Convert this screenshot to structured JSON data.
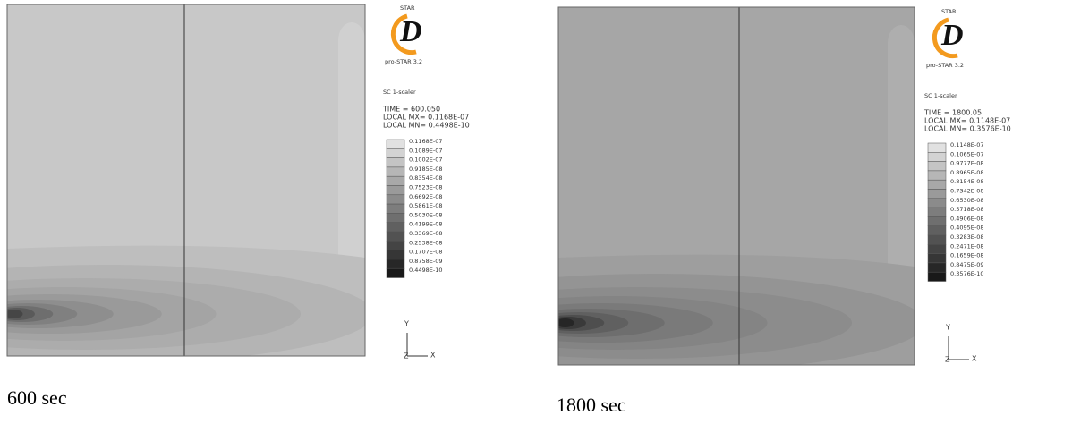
{
  "panels": [
    {
      "logo_top": "STAR",
      "logo_letter": "D",
      "logo_sub": "pro-STAR 3.2",
      "scalar": "SC 1-scaler",
      "time": "TIME =  600.050",
      "local_mx": "LOCAL MX= 0.1168E-07",
      "local_mn": "LOCAL MN= 0.4498E-10",
      "legend": [
        "0.1168E-07",
        "0.1089E-07",
        "0.1002E-07",
        "0.9185E-08",
        "0.8354E-08",
        "0.7523E-08",
        "0.6692E-08",
        "0.5861E-08",
        "0.5030E-08",
        "0.4199E-08",
        "0.3369E-08",
        "0.2538E-08",
        "0.1707E-08",
        "0.8758E-09",
        "0.4498E-10"
      ],
      "axis_y": "Y",
      "axis_z": "Z",
      "axis_x": "X",
      "caption": "600 sec"
    },
    {
      "logo_top": "STAR",
      "logo_letter": "D",
      "logo_sub": "pro-STAR 3.2",
      "scalar": "SC 1-scaler",
      "time": "TIME =  1800.05",
      "local_mx": "LOCAL MX= 0.1148E-07",
      "local_mn": "LOCAL MN= 0.3576E-10",
      "legend": [
        "0.1148E-07",
        "0.1065E-07",
        "0.9777E-08",
        "0.8965E-08",
        "0.8154E-08",
        "0.7342E-08",
        "0.6530E-08",
        "0.5718E-08",
        "0.4906E-08",
        "0.4095E-08",
        "0.3283E-08",
        "0.2471E-08",
        "0.1659E-08",
        "0.8475E-09",
        "0.3576E-10"
      ],
      "axis_y": "Y",
      "axis_z": "Z",
      "axis_x": "X",
      "caption": "1800 sec"
    }
  ]
}
